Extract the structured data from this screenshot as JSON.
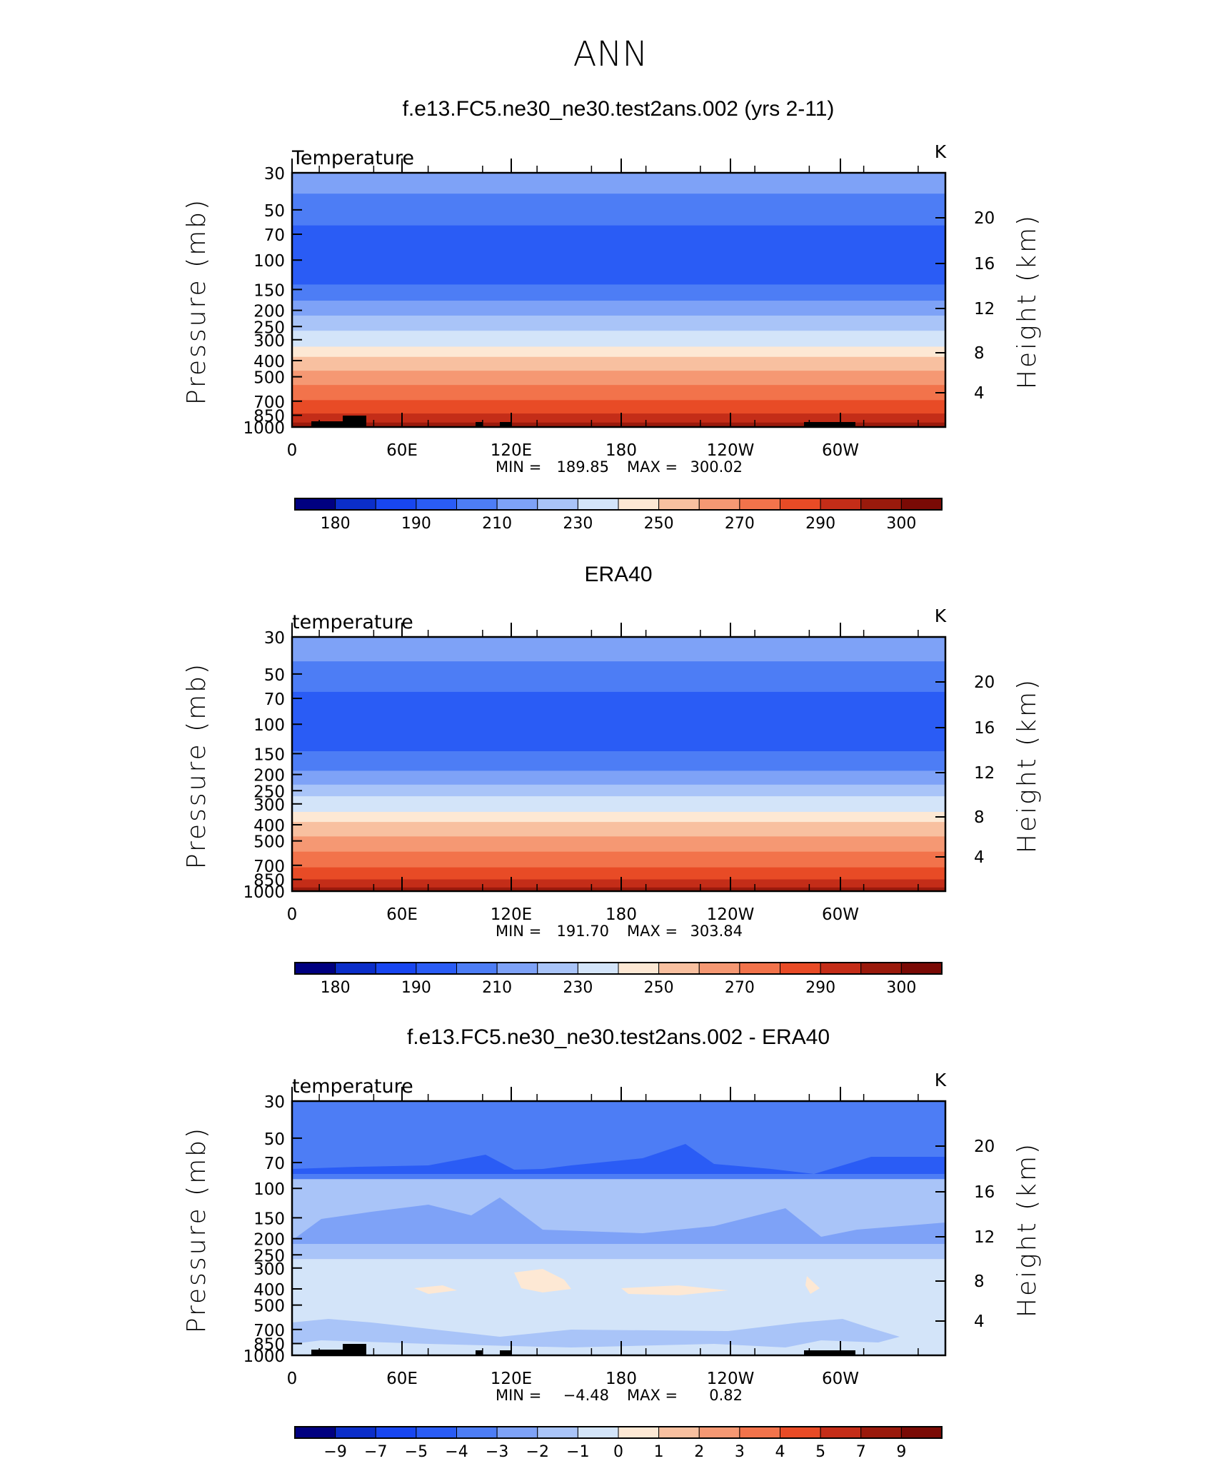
{
  "figure_title": "ANN",
  "palette": [
    "#000080",
    "#0b2ec9",
    "#1846f0",
    "#2a5cf5",
    "#4d7df5",
    "#7ea2f7",
    "#a9c4f8",
    "#d3e4f9",
    "#fde8d4",
    "#f8c0a0",
    "#f59873",
    "#f2734b",
    "#e84b26",
    "#c42d18",
    "#9a1a0c",
    "#7a0a05"
  ],
  "label_text": {
    "min_prefix": "MIN =",
    "max_prefix": "MAX ="
  },
  "chart_data": [
    {
      "type": "heatmap",
      "title": "f.e13.FC5.ne30_ne30.test2ans.002 (yrs 2-11)",
      "left_label": "Temperature",
      "unit": "K",
      "ylabel": "Pressure (mb)",
      "y2label": "Height (km)",
      "y_ticks": [
        "30",
        "50",
        "70",
        "100",
        "150",
        "200",
        "250",
        "300",
        "400",
        "500",
        "700",
        "850",
        "1000"
      ],
      "y2_ticks": [
        "20",
        "16",
        "12",
        "8",
        "4"
      ],
      "x_ticks": [
        "0",
        "60E",
        "120E",
        "180",
        "120W",
        "60W"
      ],
      "min": "189.85",
      "max": "300.02",
      "colorbar_labels": [
        "180",
        "190",
        "210",
        "230",
        "250",
        "270",
        "290",
        "300"
      ],
      "layers": [
        {
          "p": 30,
          "c": 5
        },
        {
          "p": 40,
          "c": 4
        },
        {
          "p": 62,
          "c": 3
        },
        {
          "p": 140,
          "c": 4
        },
        {
          "p": 175,
          "c": 5
        },
        {
          "p": 215,
          "c": 6
        },
        {
          "p": 265,
          "c": 7
        },
        {
          "p": 330,
          "c": 8
        },
        {
          "p": 380,
          "c": 9
        },
        {
          "p": 460,
          "c": 10
        },
        {
          "p": 560,
          "c": 11
        },
        {
          "p": 690,
          "c": 12
        },
        {
          "p": 830,
          "c": 13
        },
        {
          "p": 940,
          "c": 14
        }
      ],
      "terrain": true
    },
    {
      "type": "heatmap",
      "title": "ERA40",
      "left_label": "temperature",
      "unit": "K",
      "ylabel": "Pressure (mb)",
      "y2label": "Height (km)",
      "y_ticks": [
        "30",
        "50",
        "70",
        "100",
        "150",
        "200",
        "250",
        "300",
        "400",
        "500",
        "700",
        "850",
        "1000"
      ],
      "y2_ticks": [
        "20",
        "16",
        "12",
        "8",
        "4"
      ],
      "x_ticks": [
        "0",
        "60E",
        "120E",
        "180",
        "120W",
        "60W"
      ],
      "min": "191.70",
      "max": "303.84",
      "colorbar_labels": [
        "180",
        "190",
        "210",
        "230",
        "250",
        "270",
        "290",
        "300"
      ],
      "layers": [
        {
          "p": 30,
          "c": 5
        },
        {
          "p": 42,
          "c": 4
        },
        {
          "p": 64,
          "c": 3
        },
        {
          "p": 145,
          "c": 4
        },
        {
          "p": 190,
          "c": 5
        },
        {
          "p": 230,
          "c": 6
        },
        {
          "p": 270,
          "c": 7
        },
        {
          "p": 335,
          "c": 8
        },
        {
          "p": 385,
          "c": 9
        },
        {
          "p": 470,
          "c": 10
        },
        {
          "p": 580,
          "c": 11
        },
        {
          "p": 720,
          "c": 12
        },
        {
          "p": 850,
          "c": 13
        },
        {
          "p": 950,
          "c": 14
        }
      ],
      "terrain": false
    },
    {
      "type": "heatmap",
      "title": "f.e13.FC5.ne30_ne30.test2ans.002 - ERA40",
      "left_label": "temperature",
      "unit": "K",
      "ylabel": "Pressure (mb)",
      "y2label": "Height (km)",
      "y_ticks": [
        "30",
        "50",
        "70",
        "100",
        "150",
        "200",
        "250",
        "300",
        "400",
        "500",
        "700",
        "850",
        "1000"
      ],
      "y2_ticks": [
        "20",
        "16",
        "12",
        "8",
        "4"
      ],
      "x_ticks": [
        "0",
        "60E",
        "120E",
        "180",
        "120W",
        "60W"
      ],
      "min": "−4.48",
      "max": "0.82",
      "colorbar_labels": [
        "−9",
        "−7",
        "−5",
        "−4",
        "−3",
        "−2",
        "−1",
        "0",
        "1",
        "2",
        "3",
        "4",
        "5",
        "7",
        "9"
      ],
      "layers": [
        {
          "p": 30,
          "c": 4
        },
        {
          "p": 88,
          "c": 6
        },
        {
          "p": 265,
          "c": 7
        }
      ],
      "terrain": true
    }
  ]
}
